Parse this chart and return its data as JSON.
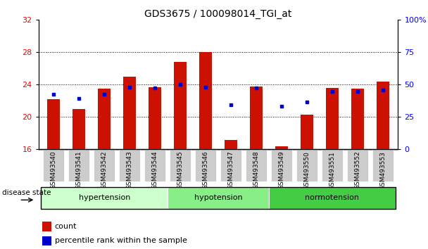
{
  "title": "GDS3675 / 100098014_TGI_at",
  "samples": [
    "GSM493540",
    "GSM493541",
    "GSM493542",
    "GSM493543",
    "GSM493544",
    "GSM493545",
    "GSM493546",
    "GSM493547",
    "GSM493548",
    "GSM493549",
    "GSM493550",
    "GSM493551",
    "GSM493552",
    "GSM493553"
  ],
  "red_values": [
    22.2,
    21.0,
    23.5,
    25.0,
    23.7,
    26.8,
    28.0,
    17.2,
    23.8,
    16.4,
    20.3,
    23.6,
    23.5,
    24.4
  ],
  "blue_values": [
    22.8,
    22.3,
    22.8,
    23.7,
    23.6,
    24.0,
    23.7,
    21.5,
    23.6,
    21.3,
    21.9,
    23.2,
    23.2,
    23.3
  ],
  "ylim_left": [
    16,
    32
  ],
  "ylim_right": [
    0,
    100
  ],
  "yticks_left": [
    16,
    20,
    24,
    28,
    32
  ],
  "yticks_right": [
    0,
    25,
    50,
    75,
    100
  ],
  "ytick_labels_right": [
    "0",
    "25",
    "50",
    "75",
    "100%"
  ],
  "groups": [
    {
      "label": "hypertension",
      "start": 0,
      "end": 5,
      "color": "#ccffcc"
    },
    {
      "label": "hypotension",
      "start": 5,
      "end": 9,
      "color": "#88ee88"
    },
    {
      "label": "normotension",
      "start": 9,
      "end": 14,
      "color": "#44cc44"
    }
  ],
  "bar_color": "#cc1100",
  "dot_color": "#0000cc",
  "baseline": 16,
  "bar_width": 0.5,
  "background_color": "#ffffff",
  "plot_bg_color": "#ffffff",
  "tick_label_bg": "#cccccc",
  "title_fontsize": 10,
  "axis_fontsize": 8,
  "xtick_fontsize": 6.5,
  "legend_fontsize": 8,
  "disease_state_label": "disease state",
  "legend_items": [
    "count",
    "percentile rank within the sample"
  ]
}
